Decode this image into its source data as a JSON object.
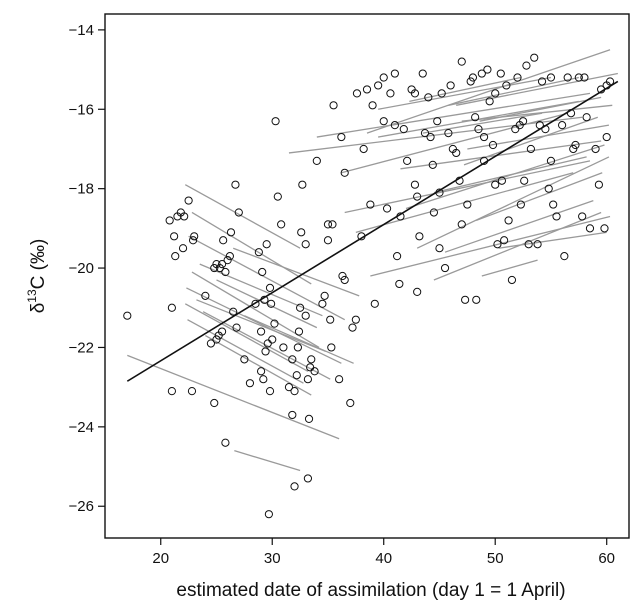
{
  "chart_data": {
    "type": "scatter",
    "xlabel": "estimated date of assimilation (day 1 = 1 April)",
    "ylabel_main": "δ",
    "ylabel_sup": "13",
    "ylabel_rest": "C (‰)",
    "xlim": [
      15,
      62
    ],
    "ylim": [
      -26.8,
      -13.6
    ],
    "xticks": [
      20,
      30,
      40,
      50,
      60
    ],
    "yticks": [
      -26,
      -24,
      -22,
      -20,
      -18,
      -16,
      -14
    ],
    "xtick_labels": [
      "20",
      "30",
      "40",
      "50",
      "60"
    ],
    "ytick_labels": [
      "−26",
      "−24",
      "−22",
      "−20",
      "−18",
      "−16",
      "−14"
    ],
    "grid": false,
    "colors": {
      "points": "#111111",
      "segments": "#9a9a9a",
      "fit": "#111111"
    },
    "regression_line": {
      "x": [
        17,
        61
      ],
      "y": [
        -22.85,
        -15.3
      ]
    },
    "points": [
      [
        17,
        -21.2
      ],
      [
        20.8,
        -18.8
      ],
      [
        21,
        -23.1
      ],
      [
        21.2,
        -19.2
      ],
      [
        21.3,
        -19.7
      ],
      [
        21.5,
        -18.7
      ],
      [
        21.8,
        -18.6
      ],
      [
        22,
        -19.5
      ],
      [
        22.1,
        -18.7
      ],
      [
        22.5,
        -18.3
      ],
      [
        22.8,
        -23.1
      ],
      [
        22.9,
        -19.3
      ],
      [
        23,
        -19.2
      ],
      [
        21,
        -21
      ],
      [
        24,
        -20.7
      ],
      [
        24.5,
        -21.9
      ],
      [
        25,
        -21.8
      ],
      [
        25.2,
        -21.7
      ],
      [
        25.5,
        -21.6
      ],
      [
        24.8,
        -23.4
      ],
      [
        25,
        -19.9
      ],
      [
        25.3,
        -20
      ],
      [
        25.6,
        -19.3
      ],
      [
        25.8,
        -20.1
      ],
      [
        25.5,
        -19.9
      ],
      [
        26,
        -19.8
      ],
      [
        26.2,
        -19.7
      ],
      [
        26.3,
        -19.1
      ],
      [
        26.5,
        -21.1
      ],
      [
        26.8,
        -21.5
      ],
      [
        27,
        -18.6
      ],
      [
        26.7,
        -17.9
      ],
      [
        25.8,
        -24.4
      ],
      [
        24.8,
        -20
      ],
      [
        27.5,
        -22.3
      ],
      [
        28,
        -22.9
      ],
      [
        28.5,
        -20.9
      ],
      [
        29,
        -22.6
      ],
      [
        29,
        -21.6
      ],
      [
        29.2,
        -22.8
      ],
      [
        29.4,
        -22.1
      ],
      [
        29.6,
        -21.9
      ],
      [
        29.8,
        -23.1
      ],
      [
        30,
        -21.8
      ],
      [
        29.5,
        -19.4
      ],
      [
        29.8,
        -20.5
      ],
      [
        30.2,
        -21.4
      ],
      [
        29.7,
        -26.2
      ],
      [
        30.3,
        -16.3
      ],
      [
        30.5,
        -18.2
      ],
      [
        30.8,
        -18.9
      ],
      [
        29.1,
        -20.1
      ],
      [
        28.8,
        -19.6
      ],
      [
        29.3,
        -20.8
      ],
      [
        29.9,
        -20.9
      ],
      [
        31,
        -22
      ],
      [
        31.5,
        -23
      ],
      [
        31.8,
        -22.3
      ],
      [
        32,
        -23.1
      ],
      [
        32.2,
        -22.7
      ],
      [
        32.4,
        -21.6
      ],
      [
        32.5,
        -21
      ],
      [
        32.6,
        -19.1
      ],
      [
        32.7,
        -17.9
      ],
      [
        33,
        -21.2
      ],
      [
        33,
        -19.4
      ],
      [
        33.2,
        -22.8
      ],
      [
        33.3,
        -23.8
      ],
      [
        33.5,
        -22.3
      ],
      [
        33.4,
        -22.5
      ],
      [
        33.8,
        -22.6
      ],
      [
        32,
        -25.5
      ],
      [
        33.2,
        -25.3
      ],
      [
        31.8,
        -23.7
      ],
      [
        32.3,
        -22
      ],
      [
        34,
        -17.3
      ],
      [
        34.5,
        -20.9
      ],
      [
        34.7,
        -20.7
      ],
      [
        35,
        -19.3
      ],
      [
        35.2,
        -21.3
      ],
      [
        35.3,
        -22
      ],
      [
        35,
        -18.9
      ],
      [
        35.5,
        -15.9
      ],
      [
        36,
        -22.8
      ],
      [
        36.2,
        -16.7
      ],
      [
        36.5,
        -20.3
      ],
      [
        36.3,
        -20.2
      ],
      [
        36.5,
        -17.6
      ],
      [
        37,
        -23.4
      ],
      [
        37.2,
        -21.5
      ],
      [
        37.5,
        -21.3
      ],
      [
        37.6,
        -15.6
      ],
      [
        38,
        -19.2
      ],
      [
        38.2,
        -17
      ],
      [
        38.5,
        -15.5
      ],
      [
        38.8,
        -18.4
      ],
      [
        39,
        -15.9
      ],
      [
        39.2,
        -20.9
      ],
      [
        39.5,
        -15.4
      ],
      [
        40,
        -15.2
      ],
      [
        40,
        -16.3
      ],
      [
        40.3,
        -18.5
      ],
      [
        40.6,
        -15.6
      ],
      [
        41,
        -16.4
      ],
      [
        41,
        -15.1
      ],
      [
        41.2,
        -19.7
      ],
      [
        41.4,
        -20.4
      ],
      [
        41.5,
        -18.7
      ],
      [
        41.8,
        -16.5
      ],
      [
        42.1,
        -17.3
      ],
      [
        42.5,
        -15.5
      ],
      [
        42.8,
        -15.6
      ],
      [
        43,
        -18.2
      ],
      [
        43.2,
        -19.2
      ],
      [
        43.5,
        -15.1
      ],
      [
        43.7,
        -16.6
      ],
      [
        44,
        -15.7
      ],
      [
        44.2,
        -16.7
      ],
      [
        44.4,
        -17.4
      ],
      [
        44.5,
        -18.6
      ],
      [
        44.8,
        -16.3
      ],
      [
        45,
        -18.1
      ],
      [
        45,
        -19.5
      ],
      [
        45.2,
        -15.6
      ],
      [
        45.5,
        -20
      ],
      [
        45.8,
        -16.6
      ],
      [
        46,
        -15.4
      ],
      [
        46.2,
        -17
      ],
      [
        46.5,
        -17.1
      ],
      [
        46.8,
        -17.8
      ],
      [
        47,
        -18.9
      ],
      [
        47,
        -14.8
      ],
      [
        47.3,
        -20.8
      ],
      [
        47.5,
        -18.4
      ],
      [
        47.8,
        -15.3
      ],
      [
        48,
        -15.2
      ],
      [
        48.2,
        -16.2
      ],
      [
        48.3,
        -20.8
      ],
      [
        48.5,
        -16.5
      ],
      [
        48.8,
        -15.1
      ],
      [
        49,
        -16.7
      ],
      [
        49,
        -17.3
      ],
      [
        49.3,
        -15
      ],
      [
        49.5,
        -15.8
      ],
      [
        49.8,
        -16.9
      ],
      [
        50,
        -17.9
      ],
      [
        50,
        -15.6
      ],
      [
        50.2,
        -19.4
      ],
      [
        50.5,
        -15.1
      ],
      [
        50.6,
        -17.8
      ],
      [
        50.8,
        -19.3
      ],
      [
        51,
        -15.4
      ],
      [
        51.2,
        -18.8
      ],
      [
        51.5,
        -20.3
      ],
      [
        51.8,
        -16.5
      ],
      [
        52,
        -15.2
      ],
      [
        52.2,
        -16.4
      ],
      [
        52.3,
        -18.4
      ],
      [
        52.5,
        -16.3
      ],
      [
        52.6,
        -17.8
      ],
      [
        52.8,
        -14.9
      ],
      [
        53,
        -19.4
      ],
      [
        53.2,
        -17
      ],
      [
        53.5,
        -14.7
      ],
      [
        53.8,
        -19.4
      ],
      [
        54,
        -16.4
      ],
      [
        54.2,
        -15.3
      ],
      [
        54.5,
        -16.5
      ],
      [
        54.8,
        -18
      ],
      [
        55,
        -15.2
      ],
      [
        55,
        -17.3
      ],
      [
        55.2,
        -18.4
      ],
      [
        55.5,
        -18.7
      ],
      [
        56,
        -16.4
      ],
      [
        56.2,
        -19.7
      ],
      [
        56.5,
        -15.2
      ],
      [
        56.8,
        -16.1
      ],
      [
        57,
        -17
      ],
      [
        57.2,
        -16.9
      ],
      [
        57.5,
        -15.2
      ],
      [
        57.8,
        -18.7
      ],
      [
        58,
        -15.2
      ],
      [
        58.2,
        -16.2
      ],
      [
        58.5,
        -19
      ],
      [
        59,
        -17
      ],
      [
        59.3,
        -17.9
      ],
      [
        59.5,
        -15.5
      ],
      [
        59.8,
        -19
      ],
      [
        60,
        -16.7
      ],
      [
        60,
        -15.4
      ],
      [
        60.3,
        -15.3
      ],
      [
        43,
        -20.6
      ],
      [
        42.8,
        -17.9
      ],
      [
        35.4,
        -18.9
      ]
    ],
    "segments": [
      [
        17,
        -22.2,
        36,
        -24.3
      ],
      [
        22.2,
        -17.9,
        32.5,
        -19.5
      ],
      [
        22.8,
        -18.6,
        33.5,
        -20.4
      ],
      [
        22.5,
        -19.2,
        36.5,
        -21.3
      ],
      [
        23.5,
        -19.9,
        34.5,
        -21.2
      ],
      [
        22.2,
        -20.9,
        33.2,
        -22.6
      ],
      [
        22.3,
        -20.5,
        36.2,
        -22.4
      ],
      [
        23.2,
        -20.8,
        34.8,
        -22.1
      ],
      [
        22.8,
        -20.1,
        34.2,
        -22
      ],
      [
        23.8,
        -21.1,
        35.2,
        -22.8
      ],
      [
        22.4,
        -21.3,
        32.8,
        -22.9
      ],
      [
        25,
        -20.3,
        34,
        -21.5
      ],
      [
        24,
        -21.7,
        33.5,
        -23.2
      ],
      [
        26.6,
        -24.6,
        32.5,
        -25.1
      ],
      [
        27.5,
        -21.2,
        37.3,
        -22.4
      ],
      [
        26.5,
        -19.5,
        37.8,
        -20.7
      ],
      [
        31.5,
        -17.1,
        57.8,
        -16.2
      ],
      [
        34,
        -16.7,
        58.5,
        -15.6
      ],
      [
        36.5,
        -18.6,
        58.5,
        -17.3
      ],
      [
        38.5,
        -16.6,
        60.3,
        -14.5
      ],
      [
        39.5,
        -16.7,
        57.5,
        -15.8
      ],
      [
        36.2,
        -17.6,
        56.5,
        -16.1
      ],
      [
        37.5,
        -19.1,
        57,
        -17.6
      ],
      [
        38.8,
        -20.2,
        60.3,
        -18.7
      ],
      [
        41.5,
        -17.5,
        59.5,
        -16.8
      ],
      [
        42,
        -18.5,
        59.8,
        -16.9
      ],
      [
        43,
        -19.5,
        60.2,
        -17.2
      ],
      [
        44.5,
        -20.3,
        59.5,
        -18.6
      ],
      [
        45.5,
        -19.6,
        58.8,
        -18.3
      ],
      [
        44.5,
        -18.1,
        58.2,
        -17.2
      ],
      [
        46.5,
        -15.9,
        61,
        -15.1
      ],
      [
        47,
        -16.3,
        60.5,
        -15.9
      ],
      [
        45.8,
        -15.9,
        57.5,
        -15.2
      ],
      [
        39.5,
        -16,
        55,
        -15.2
      ],
      [
        47.2,
        -17.4,
        59.2,
        -16.2
      ],
      [
        48.6,
        -16.3,
        59.5,
        -15.7
      ],
      [
        48.3,
        -18.8,
        59.6,
        -17.6
      ],
      [
        48.8,
        -20.2,
        53.8,
        -19.8
      ],
      [
        50.3,
        -19.5,
        60,
        -19.1
      ],
      [
        42.3,
        -15.8,
        52.3,
        -15.2
      ],
      [
        43.5,
        -16.6,
        54.2,
        -16.1
      ],
      [
        47.5,
        -17,
        60.2,
        -16.4
      ]
    ]
  }
}
